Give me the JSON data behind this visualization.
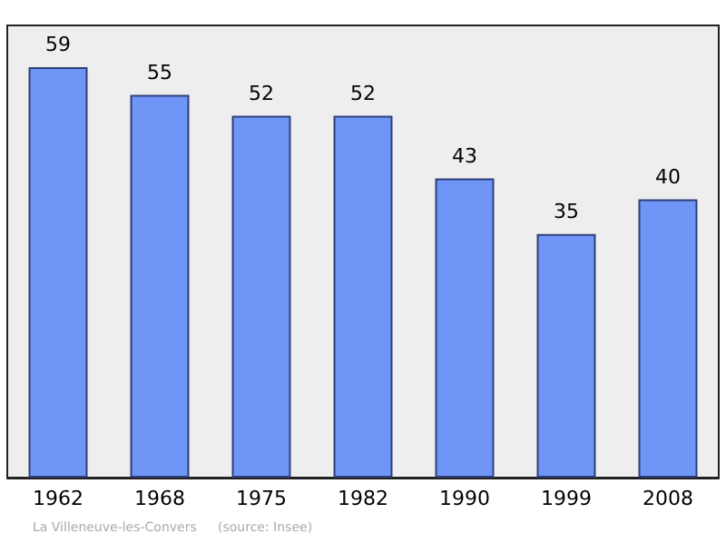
{
  "chart_data": {
    "type": "bar",
    "categories": [
      "1962",
      "1968",
      "1975",
      "1982",
      "1990",
      "1999",
      "2008"
    ],
    "values": [
      59,
      55,
      52,
      52,
      43,
      35,
      40
    ],
    "color": "#6f96f7",
    "data_labels": true,
    "ylim": [
      0,
      65
    ],
    "annotations": [
      "La Villeneuve-les-Convers",
      "(source: Insee)"
    ]
  }
}
